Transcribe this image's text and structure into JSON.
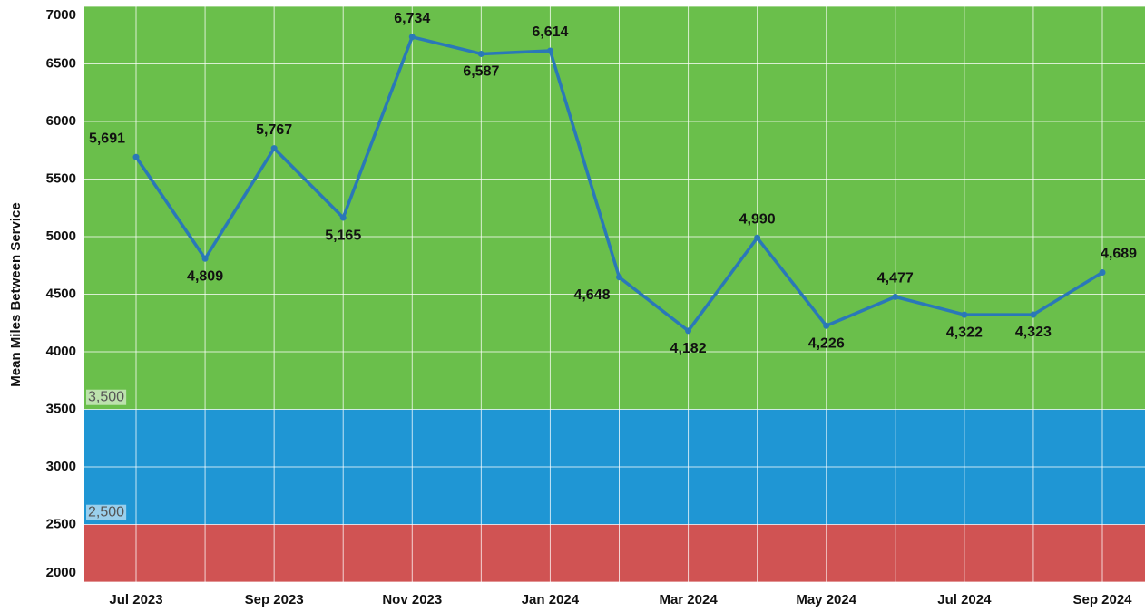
{
  "chart_data": {
    "type": "line",
    "y_label": "Mean Miles Between Service",
    "categories": [
      "Jul 2023",
      null,
      "Sep 2023",
      null,
      "Nov 2023",
      null,
      "Jan 2024",
      null,
      "Mar 2024",
      null,
      "May 2024",
      null,
      "Jul 2024",
      null,
      "Sep 2024"
    ],
    "series": [
      {
        "name": "Mean Miles Between Service",
        "color": "#2a78b8",
        "values": [
          5691,
          4809,
          5767,
          5165,
          6734,
          6587,
          6614,
          4648,
          4182,
          4990,
          4226,
          4477,
          4322,
          4323,
          4689
        ],
        "value_labels": [
          "5,691",
          "4,809",
          "5,767",
          "5,165",
          "6,734",
          "6,587",
          "6,614",
          "4,648",
          "4,182",
          "4,990",
          "4,226",
          "4,477",
          "4,322",
          "4,323",
          "4,689"
        ]
      }
    ],
    "ylim": [
      2000,
      7000
    ],
    "yticks": [
      2000,
      2500,
      3000,
      3500,
      4000,
      4500,
      5000,
      5500,
      6000,
      6500,
      7000
    ],
    "thresholds": [
      {
        "value": 3500,
        "label": "3,500"
      },
      {
        "value": 2500,
        "label": "2,500"
      }
    ],
    "band_colors": [
      "#6abf4b",
      "#1f96d4",
      "#d05353"
    ],
    "grid": true
  }
}
